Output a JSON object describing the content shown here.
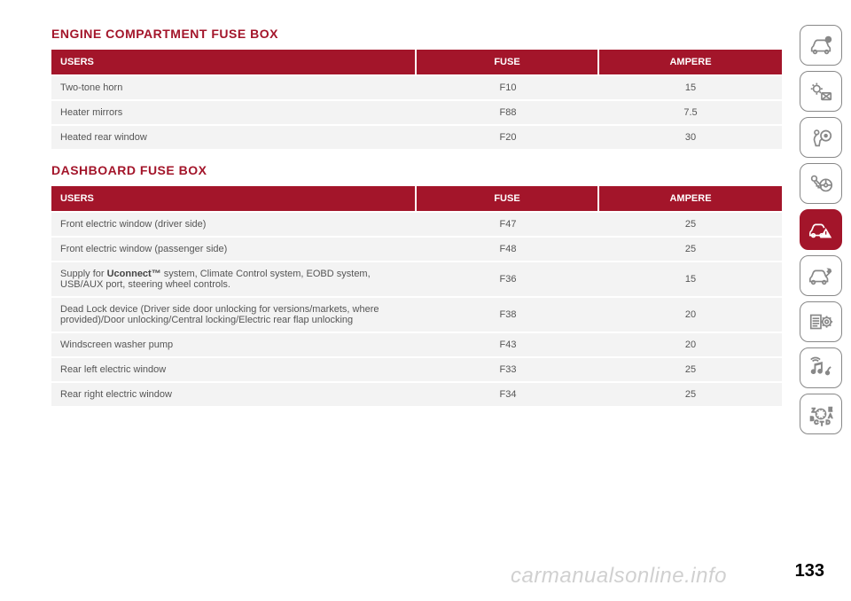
{
  "headings": {
    "engine": "ENGINE COMPARTMENT FUSE BOX",
    "dashboard": "DASHBOARD FUSE BOX"
  },
  "columns": {
    "users": "USERS",
    "fuse": "FUSE",
    "ampere": "AMPERE"
  },
  "engine_table": {
    "rows": [
      {
        "users": "Two-tone horn",
        "fuse": "F10",
        "ampere": "15"
      },
      {
        "users": "Heater mirrors",
        "fuse": "F88",
        "ampere": "7.5"
      },
      {
        "users": "Heated rear window",
        "fuse": "F20",
        "ampere": "30"
      }
    ]
  },
  "dashboard_table": {
    "rows": [
      {
        "users": "Front electric window (driver side)",
        "fuse": "F47",
        "ampere": "25"
      },
      {
        "users": "Front electric window (passenger side)",
        "fuse": "F48",
        "ampere": "25"
      },
      {
        "users_html": "Supply for <b>Uconnect™</b> system, Climate Control system, EOBD system, USB/AUX port, steering wheel controls.",
        "fuse": "F36",
        "ampere": "15"
      },
      {
        "users": "Dead Lock device (Driver side door unlocking for versions/markets, where provided)/Door unlocking/Central locking/Electric rear flap unlocking",
        "fuse": "F38",
        "ampere": "20"
      },
      {
        "users": "Windscreen washer pump",
        "fuse": "F43",
        "ampere": "20"
      },
      {
        "users": "Rear left electric window",
        "fuse": "F33",
        "ampere": "25"
      },
      {
        "users": "Rear right electric window",
        "fuse": "F34",
        "ampere": "25"
      }
    ]
  },
  "sidebar": {
    "items": [
      {
        "name": "car-info-icon",
        "active": false
      },
      {
        "name": "dashboard-light-icon",
        "active": false
      },
      {
        "name": "airbag-icon",
        "active": false
      },
      {
        "name": "key-steering-icon",
        "active": false
      },
      {
        "name": "car-warning-icon",
        "active": true
      },
      {
        "name": "car-service-icon",
        "active": false
      },
      {
        "name": "specs-gear-icon",
        "active": false
      },
      {
        "name": "multimedia-icon",
        "active": false
      },
      {
        "name": "index-icon",
        "active": false
      }
    ]
  },
  "page_number": "133",
  "watermark": "carmanualsonline.info",
  "colors": {
    "brand": "#a3152a",
    "row_bg": "#f3f3f3",
    "text": "#555555",
    "border": "#888888"
  }
}
